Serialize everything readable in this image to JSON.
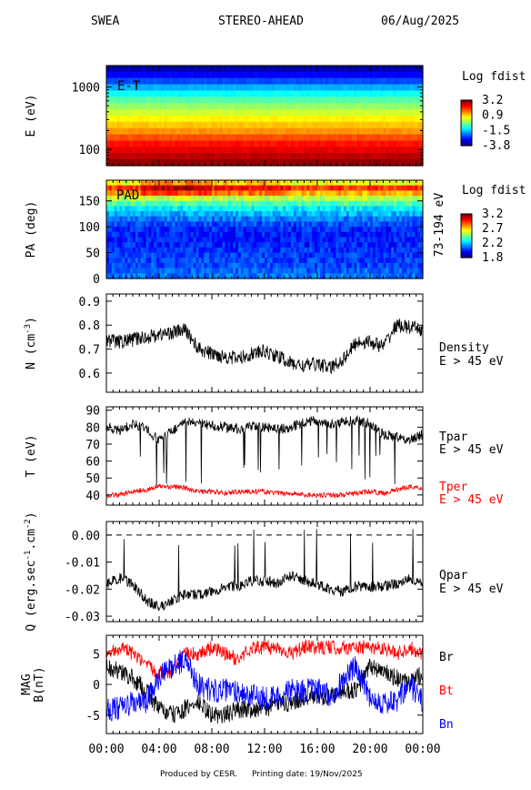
{
  "header": {
    "instrument": "SWEA",
    "spacecraft": "STEREO-AHEAD",
    "date": "06/Aug/2025"
  },
  "footer": {
    "producer": "Produced by CESR.",
    "print_date": "Printing date: 19/Nov/2025"
  },
  "colors": {
    "black": "#000000",
    "red": "#ff0000",
    "blue": "#0000ff",
    "colorbar": [
      "#00007f",
      "#0000ff",
      "#007fff",
      "#00ffff",
      "#7fff7f",
      "#ffff00",
      "#ff7f00",
      "#ff0000",
      "#7f0000"
    ]
  },
  "chart_data": [
    {
      "type": "heatmap",
      "id": "et",
      "label": "E-T",
      "ylabel": "E (eV)",
      "yscale": "log",
      "ylim": [
        55,
        2200
      ],
      "yticks": [
        1000,
        100
      ],
      "ytick_labels": [
        "1000",
        "100"
      ],
      "colorbar_title": "Log fdist",
      "colorbar_labels": [
        "3.2",
        "0.9",
        "-1.5",
        "-3.8"
      ],
      "energy_bands": [
        {
          "e": 2000,
          "level": 0.05
        },
        {
          "e": 1600,
          "level": 0.12
        },
        {
          "e": 1250,
          "level": 0.2
        },
        {
          "e": 1000,
          "level": 0.3
        },
        {
          "e": 800,
          "level": 0.38
        },
        {
          "e": 630,
          "level": 0.46
        },
        {
          "e": 500,
          "level": 0.52
        },
        {
          "e": 400,
          "level": 0.58
        },
        {
          "e": 315,
          "level": 0.63
        },
        {
          "e": 250,
          "level": 0.68
        },
        {
          "e": 200,
          "level": 0.73
        },
        {
          "e": 160,
          "level": 0.8
        },
        {
          "e": 125,
          "level": 0.86
        },
        {
          "e": 100,
          "level": 0.9
        },
        {
          "e": 80,
          "level": 0.94
        },
        {
          "e": 63,
          "level": 0.98
        }
      ]
    },
    {
      "type": "heatmap",
      "id": "pad",
      "label": "PAD",
      "ylabel": "PA (deg)",
      "ylabel_right": "73-194 eV",
      "ylim": [
        0,
        190
      ],
      "yticks": [
        150,
        100,
        50,
        0
      ],
      "ytick_labels": [
        "150",
        "100",
        "50",
        "0"
      ],
      "colorbar_title": "Log fdist",
      "colorbar_labels": [
        "3.2",
        "2.7",
        "2.2",
        "1.8"
      ],
      "pitch_bands": [
        {
          "pa": 180,
          "level": 0.62
        },
        {
          "pa": 170,
          "level": 0.82
        },
        {
          "pa": 160,
          "level": 0.7
        },
        {
          "pa": 150,
          "level": 0.56
        },
        {
          "pa": 140,
          "level": 0.45
        },
        {
          "pa": 130,
          "level": 0.36
        },
        {
          "pa": 120,
          "level": 0.3
        },
        {
          "pa": 110,
          "level": 0.24
        },
        {
          "pa": 100,
          "level": 0.2
        },
        {
          "pa": 90,
          "level": 0.16
        },
        {
          "pa": 80,
          "level": 0.15
        },
        {
          "pa": 70,
          "level": 0.15
        },
        {
          "pa": 60,
          "level": 0.16
        },
        {
          "pa": 50,
          "level": 0.17
        },
        {
          "pa": 40,
          "level": 0.18
        },
        {
          "pa": 30,
          "level": 0.19
        },
        {
          "pa": 20,
          "level": 0.2
        },
        {
          "pa": 10,
          "level": 0.22
        },
        {
          "pa": 0,
          "level": 0.24
        }
      ]
    },
    {
      "type": "line",
      "id": "density",
      "ylabel": "N (cm",
      "ylabel_sup": "-3",
      "ylabel_end": ")",
      "ylim": [
        0.52,
        0.93
      ],
      "yticks": [
        0.9,
        0.8,
        0.7,
        0.6
      ],
      "ytick_labels": [
        "0.9",
        "0.8",
        "0.7",
        "0.6"
      ],
      "series": [
        {
          "name": "Density",
          "sub": "E > 45 eV",
          "color": "#000000",
          "x_hours": [
            0,
            1,
            2,
            3,
            4,
            5,
            6,
            7,
            8,
            9,
            10,
            11,
            12,
            13,
            14,
            15,
            16,
            17,
            18,
            19,
            20,
            21,
            22,
            23,
            24
          ],
          "values": [
            0.74,
            0.73,
            0.74,
            0.75,
            0.76,
            0.77,
            0.78,
            0.7,
            0.68,
            0.67,
            0.66,
            0.68,
            0.69,
            0.67,
            0.64,
            0.63,
            0.64,
            0.62,
            0.66,
            0.73,
            0.73,
            0.71,
            0.8,
            0.79,
            0.78
          ],
          "noise": 0.03
        }
      ]
    },
    {
      "type": "line",
      "id": "temperature",
      "ylabel": "T (eV)",
      "ylim": [
        34,
        92
      ],
      "yticks": [
        90,
        80,
        70,
        60,
        50,
        40
      ],
      "ytick_labels": [
        "90",
        "80",
        "70",
        "60",
        "50",
        "40"
      ],
      "series": [
        {
          "name": "Tpar",
          "sub": "E > 45 eV",
          "color": "#000000",
          "x_hours": [
            0,
            1,
            2,
            3,
            4,
            5,
            6,
            7,
            8,
            9,
            10,
            11,
            12,
            13,
            14,
            15,
            16,
            17,
            18,
            19,
            20,
            21,
            22,
            23,
            24
          ],
          "values": [
            80,
            78,
            82,
            79,
            72,
            78,
            83,
            82,
            81,
            80,
            79,
            80,
            80,
            79,
            80,
            83,
            84,
            82,
            83,
            84,
            82,
            76,
            74,
            72,
            76
          ],
          "noise": 3,
          "dropouts": true
        },
        {
          "name": "Tper",
          "sub": "E > 45 eV",
          "color": "#ff0000",
          "x_hours": [
            0,
            1,
            2,
            3,
            4,
            5,
            6,
            7,
            8,
            9,
            10,
            11,
            12,
            13,
            14,
            15,
            16,
            17,
            18,
            19,
            20,
            21,
            22,
            23,
            24
          ],
          "values": [
            40,
            40,
            42,
            43,
            45,
            45,
            44,
            42,
            42,
            41,
            42,
            42,
            42,
            41,
            41,
            40,
            40,
            40,
            40,
            41,
            42,
            41,
            43,
            45,
            44
          ],
          "noise": 1.5
        }
      ]
    },
    {
      "type": "line",
      "id": "heatflux",
      "ylabel": "Q (erg.sec",
      "ylabel_sup": "-1",
      "ylabel_mid": ".cm",
      "ylabel_sup2": "-2",
      "ylabel_end": ")",
      "ylim": [
        -0.032,
        0.005
      ],
      "yticks": [
        0.0,
        -0.01,
        -0.02,
        -0.03
      ],
      "ytick_labels": [
        "0.00",
        "-0.01",
        "-0.02",
        "-0.03"
      ],
      "zero_line": true,
      "series": [
        {
          "name": "Qpar",
          "sub": "E > 45 eV",
          "color": "#000000",
          "x_hours": [
            0,
            1,
            2,
            3,
            4,
            5,
            6,
            7,
            8,
            9,
            10,
            11,
            12,
            13,
            14,
            15,
            16,
            17,
            18,
            19,
            20,
            21,
            22,
            23,
            24
          ],
          "values": [
            -0.018,
            -0.016,
            -0.018,
            -0.024,
            -0.027,
            -0.024,
            -0.022,
            -0.022,
            -0.021,
            -0.019,
            -0.019,
            -0.017,
            -0.017,
            -0.018,
            -0.015,
            -0.017,
            -0.018,
            -0.02,
            -0.021,
            -0.019,
            -0.019,
            -0.019,
            -0.018,
            -0.016,
            -0.018
          ],
          "noise": 0.002,
          "spikes": true
        }
      ]
    },
    {
      "type": "line",
      "id": "mag",
      "ylabel": "MAG",
      "ylabel2": "B(nT)",
      "ylim": [
        -8,
        8
      ],
      "yticks": [
        5,
        0,
        -5
      ],
      "ytick_labels": [
        "5",
        "0",
        "-5"
      ],
      "series": [
        {
          "name": "Br",
          "color": "#000000",
          "x_hours": [
            0,
            1,
            2,
            3,
            4,
            5,
            6,
            7,
            8,
            9,
            10,
            11,
            12,
            13,
            14,
            15,
            16,
            17,
            18,
            19,
            20,
            21,
            22,
            23,
            24
          ],
          "values": [
            3,
            2,
            1,
            -1,
            -4,
            -5,
            -4,
            -3,
            -5,
            -5,
            -4,
            -4,
            -4,
            -3,
            -3,
            -2,
            -2,
            -2,
            -1,
            -1,
            3,
            2,
            1,
            0,
            2
          ],
          "noise": 1.5
        },
        {
          "name": "Bt",
          "color": "#ff0000",
          "x_hours": [
            0,
            1,
            2,
            3,
            4,
            5,
            6,
            7,
            8,
            9,
            10,
            11,
            12,
            13,
            14,
            15,
            16,
            17,
            18,
            19,
            20,
            21,
            22,
            23,
            24
          ],
          "values": [
            5,
            6,
            5,
            3,
            2,
            2,
            5,
            5,
            6,
            5,
            4,
            6,
            6,
            6,
            5,
            6,
            6,
            6,
            6,
            6,
            6,
            6,
            5,
            6,
            5
          ],
          "noise": 1.2
        },
        {
          "name": "Bn",
          "color": "#0000ff",
          "x_hours": [
            0,
            1,
            2,
            3,
            4,
            5,
            6,
            7,
            8,
            9,
            10,
            11,
            12,
            13,
            14,
            15,
            16,
            17,
            18,
            19,
            20,
            21,
            22,
            23,
            24
          ],
          "values": [
            -4,
            -4,
            -3,
            -3,
            1,
            3,
            4,
            0,
            -1,
            -1,
            -1,
            -2,
            -2,
            -2,
            -1,
            -1,
            -1,
            -2,
            1,
            3,
            -2,
            -3,
            -3,
            0,
            -3
          ],
          "noise": 2
        }
      ],
      "x_tick_labels": [
        "00:00",
        "04:00",
        "08:00",
        "12:00",
        "16:00",
        "20:00",
        "00:00"
      ]
    }
  ]
}
